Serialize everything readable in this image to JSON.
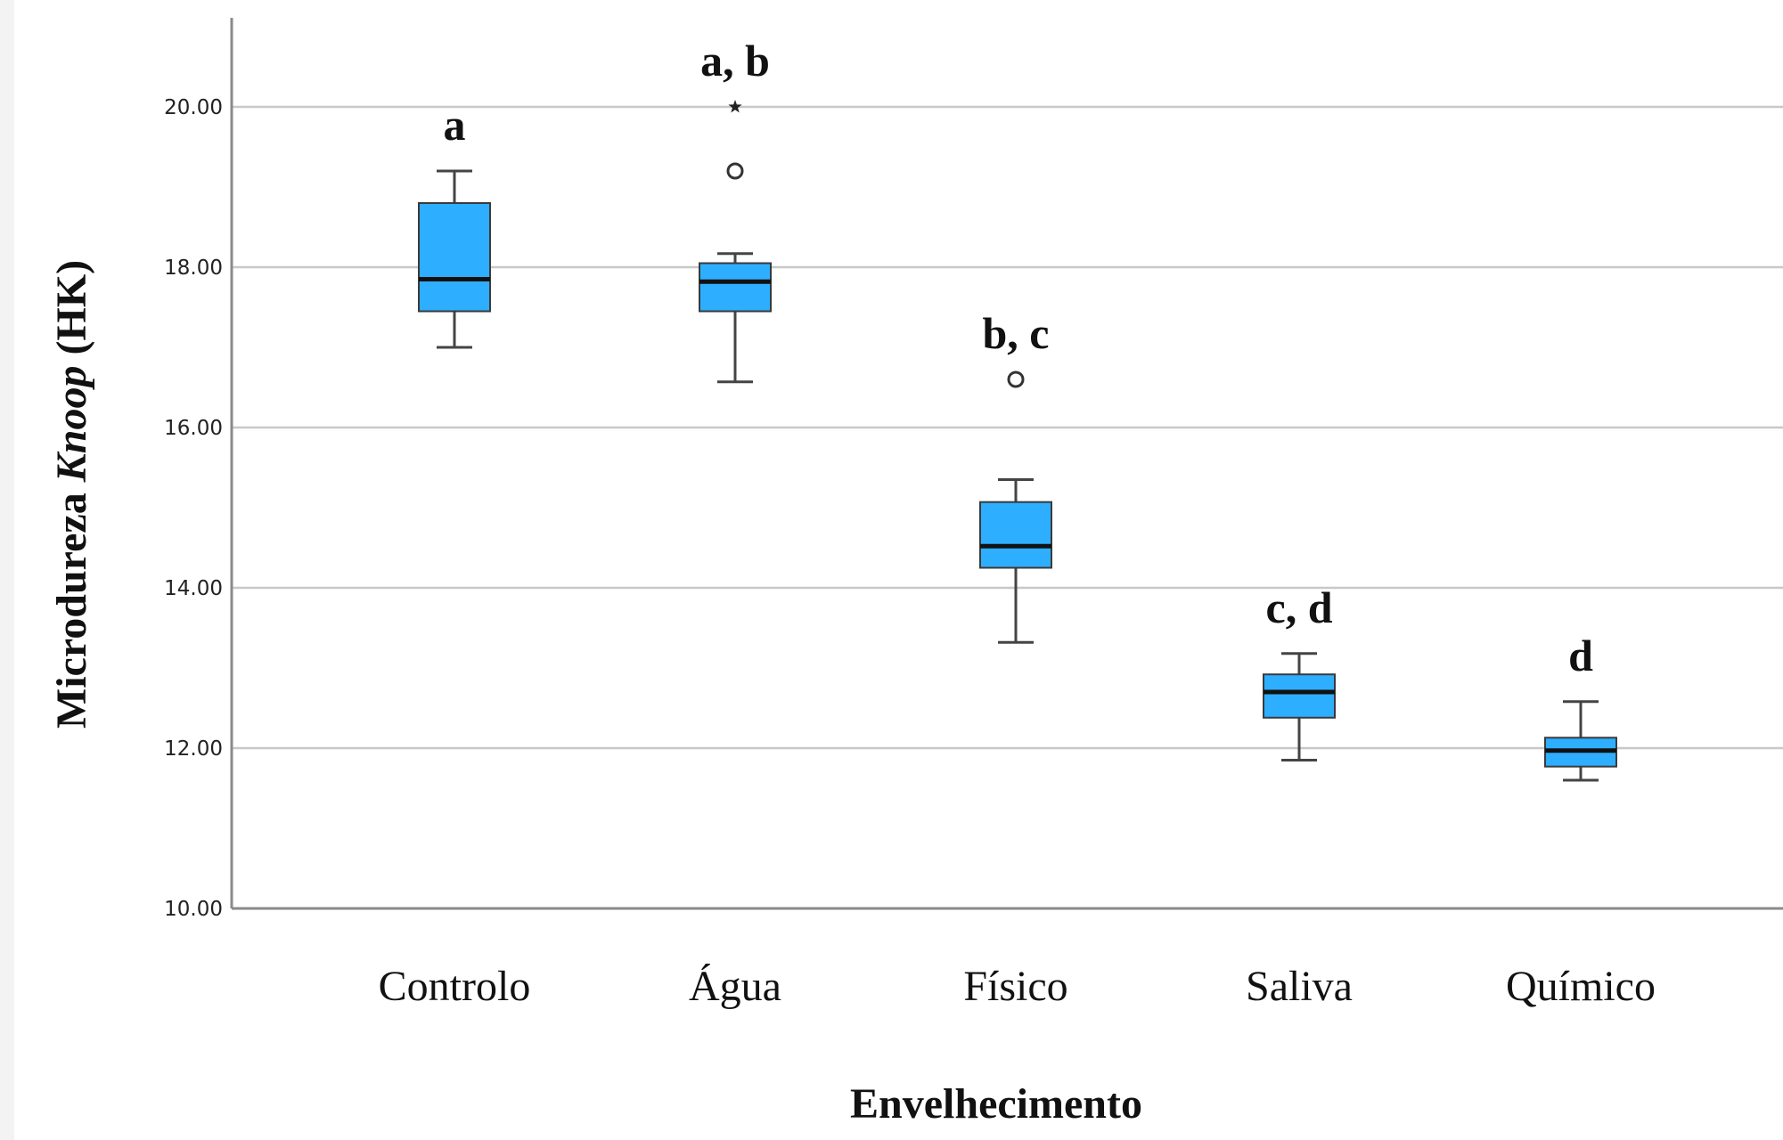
{
  "chart_data": {
    "type": "box",
    "xlabel": "Envelhecimento",
    "ylabel": {
      "prefix": "Microdureza ",
      "italic": "Knoop",
      "suffix": " (HK)"
    },
    "ylim": [
      10,
      21
    ],
    "yticks": [
      10,
      12,
      14,
      16,
      18,
      20
    ],
    "ytick_labels": [
      "10.00",
      "12.00",
      "14.00",
      "16.00",
      "18.00",
      "20.00"
    ],
    "grid": true,
    "box_color": "#2eaeff",
    "categories": [
      "Controlo",
      "Água",
      "Físico",
      "Saliva",
      "Químico"
    ],
    "boxes": [
      {
        "category": "Controlo",
        "whisker_low": 17.0,
        "q1": 17.45,
        "median": 17.85,
        "q3": 18.8,
        "whisker_high": 19.2,
        "outliers": [],
        "extremes": [],
        "letters": "a"
      },
      {
        "category": "Água",
        "whisker_low": 16.57,
        "q1": 17.45,
        "median": 17.82,
        "q3": 18.05,
        "whisker_high": 18.17,
        "outliers": [
          19.2
        ],
        "extremes": [
          20.0
        ],
        "letters": "a, b"
      },
      {
        "category": "Físico",
        "whisker_low": 13.32,
        "q1": 14.25,
        "median": 14.52,
        "q3": 15.07,
        "whisker_high": 15.35,
        "outliers": [
          16.6
        ],
        "extremes": [],
        "letters": "b, c"
      },
      {
        "category": "Saliva",
        "whisker_low": 11.85,
        "q1": 12.38,
        "median": 12.7,
        "q3": 12.92,
        "whisker_high": 13.18,
        "outliers": [],
        "extremes": [],
        "letters": "c, d"
      },
      {
        "category": "Químico",
        "whisker_low": 11.6,
        "q1": 11.77,
        "median": 11.97,
        "q3": 12.13,
        "whisker_high": 12.58,
        "outliers": [],
        "extremes": [],
        "letters": "d"
      }
    ]
  }
}
